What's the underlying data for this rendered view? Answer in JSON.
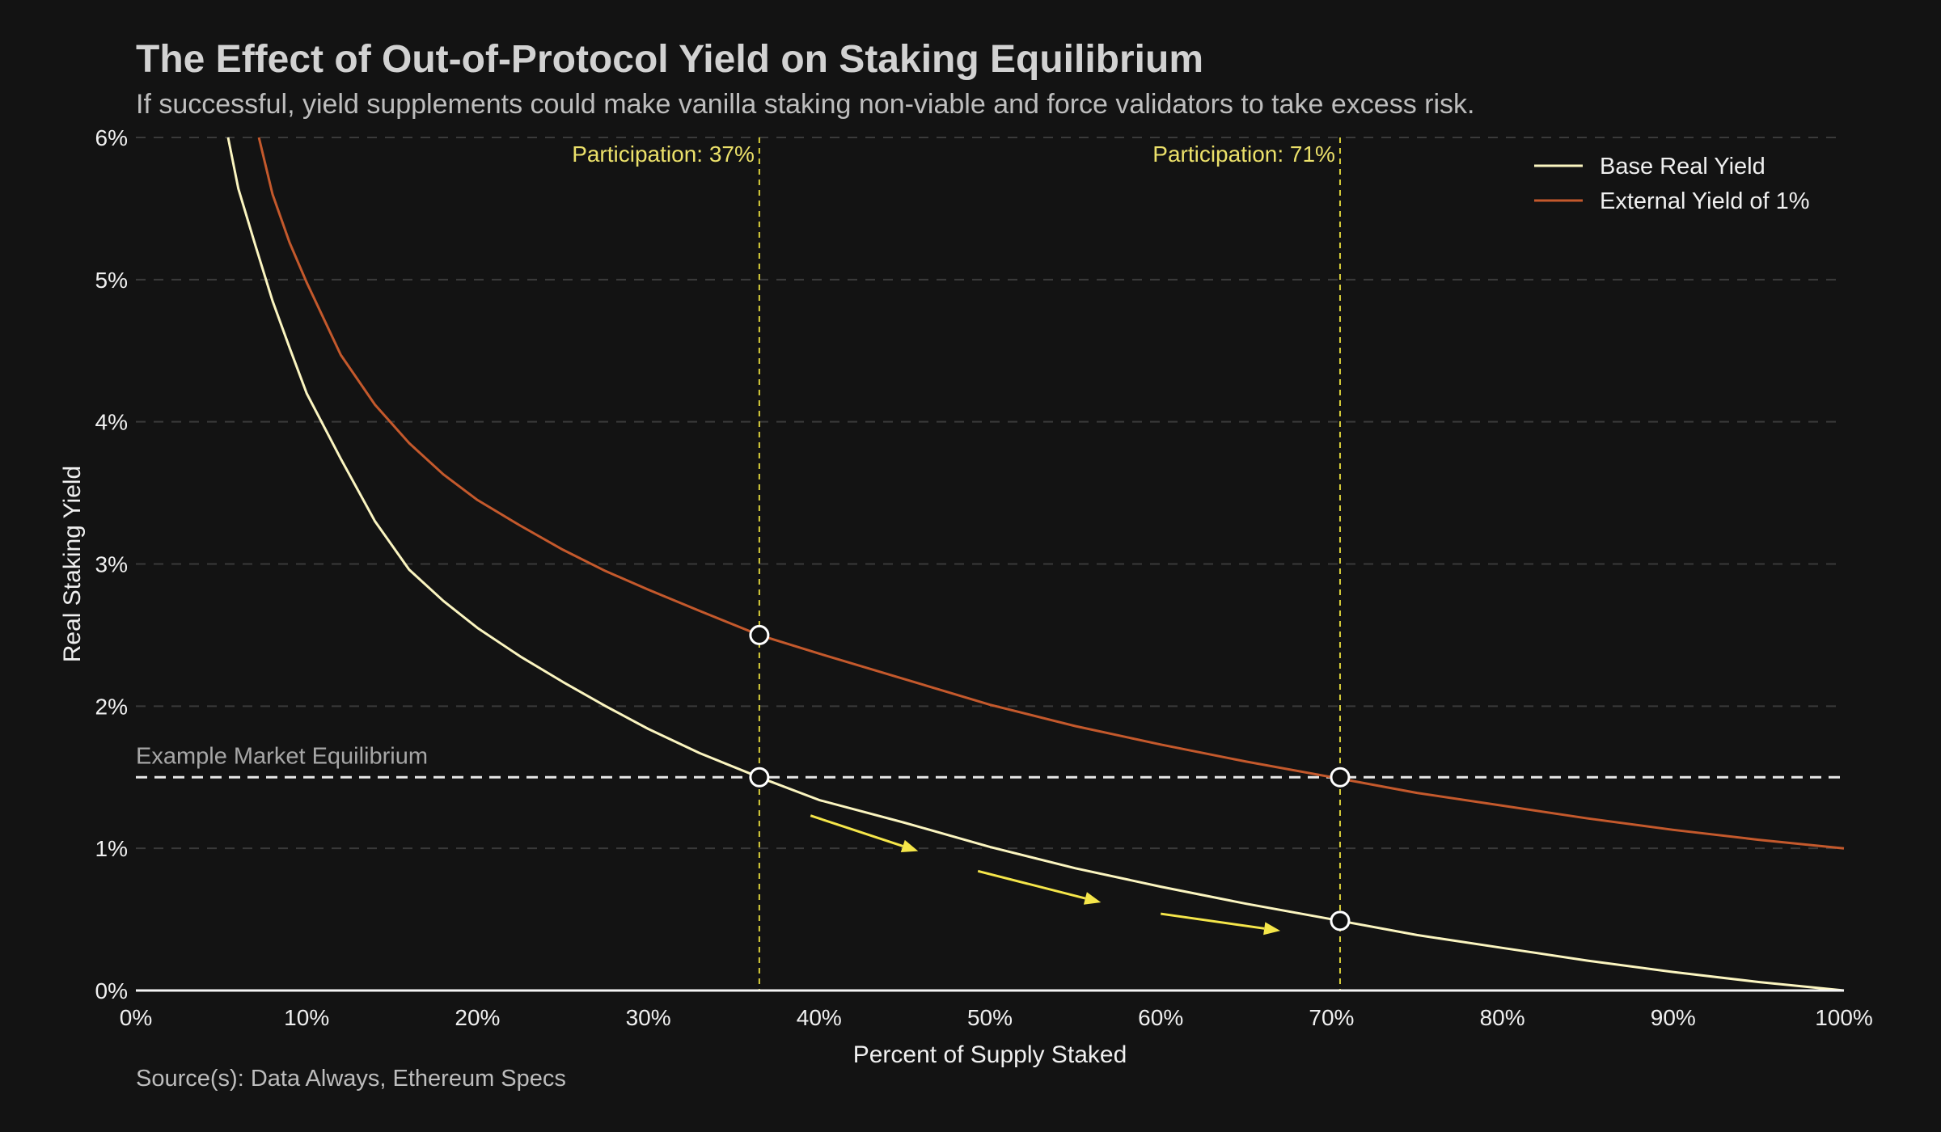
{
  "title": "The Effect of Out-of-Protocol Yield on Staking Equilibrium",
  "subtitle": "If successful, yield supplements could make vanilla staking non-viable and force validators to take excess risk.",
  "source": "Source(s): Data Always, Ethereum Specs",
  "chart_data": {
    "type": "line",
    "xlabel": "Percent of Supply Staked",
    "ylabel": "Real Staking Yield",
    "xlim": [
      0,
      100
    ],
    "ylim": [
      0,
      6
    ],
    "x_ticks": [
      "0%",
      "10%",
      "20%",
      "30%",
      "40%",
      "50%",
      "60%",
      "70%",
      "80%",
      "90%",
      "100%"
    ],
    "y_ticks": [
      "0%",
      "1%",
      "2%",
      "3%",
      "4%",
      "5%",
      "6%"
    ],
    "grid": "horizontal dashed",
    "legend_position": "top-right",
    "series": [
      {
        "name": "Base Real Yield",
        "color": "#fbf5c0",
        "x": [
          5.4,
          6,
          7,
          8,
          9,
          10,
          12,
          14,
          16,
          18,
          20,
          22.5,
          25,
          27.5,
          30,
          33,
          36.5,
          40,
          45,
          50,
          55,
          60,
          65,
          70.5,
          75,
          80,
          85,
          90,
          95,
          100
        ],
        "y": [
          6.0,
          5.64,
          5.24,
          4.85,
          4.52,
          4.2,
          3.74,
          3.3,
          2.96,
          2.74,
          2.55,
          2.35,
          2.17,
          2.0,
          1.84,
          1.67,
          1.5,
          1.34,
          1.18,
          1.01,
          0.86,
          0.73,
          0.61,
          0.49,
          0.39,
          0.3,
          0.21,
          0.13,
          0.06,
          0.0
        ]
      },
      {
        "name": "External Yield of 1%",
        "color": "#c4592c",
        "x": [
          7.2,
          8,
          9,
          10,
          12,
          14,
          16,
          18,
          20,
          22.5,
          25,
          27.5,
          30,
          33,
          36.5,
          40,
          45,
          50,
          55,
          60,
          65,
          70.5,
          75,
          80,
          85,
          90,
          95,
          100
        ],
        "y": [
          6.0,
          5.6,
          5.26,
          4.98,
          4.47,
          4.12,
          3.85,
          3.63,
          3.45,
          3.27,
          3.1,
          2.95,
          2.82,
          2.67,
          2.5,
          2.37,
          2.19,
          2.01,
          1.86,
          1.73,
          1.61,
          1.49,
          1.39,
          1.3,
          1.21,
          1.13,
          1.06,
          1.0
        ]
      }
    ],
    "equilibrium": {
      "label": "Example Market Equilibrium",
      "y": 1.5
    },
    "vlines": [
      {
        "x": 36.5,
        "label": "Participation: 37%"
      },
      {
        "x": 70.5,
        "label": "Participation: 71%"
      }
    ],
    "markers": [
      {
        "x": 36.5,
        "y": 2.5
      },
      {
        "x": 36.5,
        "y": 1.5
      },
      {
        "x": 70.5,
        "y": 1.5
      },
      {
        "x": 70.5,
        "y": 0.49
      }
    ],
    "arrows": [
      {
        "x1": 39.5,
        "y1": 1.23,
        "x2": 45.8,
        "y2": 0.98
      },
      {
        "x1": 49.3,
        "y1": 0.84,
        "x2": 56.5,
        "y2": 0.62
      },
      {
        "x1": 60.0,
        "y1": 0.54,
        "x2": 67.0,
        "y2": 0.42
      }
    ]
  }
}
